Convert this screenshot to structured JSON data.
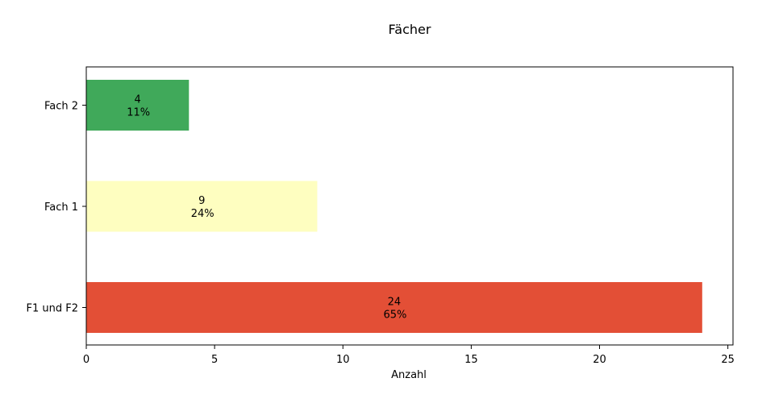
{
  "chart_data": {
    "type": "bar",
    "orientation": "horizontal",
    "title": "Fächer",
    "xlabel": "Anzahl",
    "ylabel": "",
    "categories": [
      "F1 und F2",
      "Fach 1",
      "Fach 2"
    ],
    "values": [
      24,
      9,
      4
    ],
    "percent_labels": [
      "65%",
      "24%",
      "11%"
    ],
    "colors": [
      "#e34f36",
      "#fefec0",
      "#40a95a"
    ],
    "xlim": [
      0,
      25.2
    ],
    "xticks": [
      0,
      5,
      10,
      15,
      20,
      25
    ],
    "grid": false,
    "legend": "none"
  }
}
